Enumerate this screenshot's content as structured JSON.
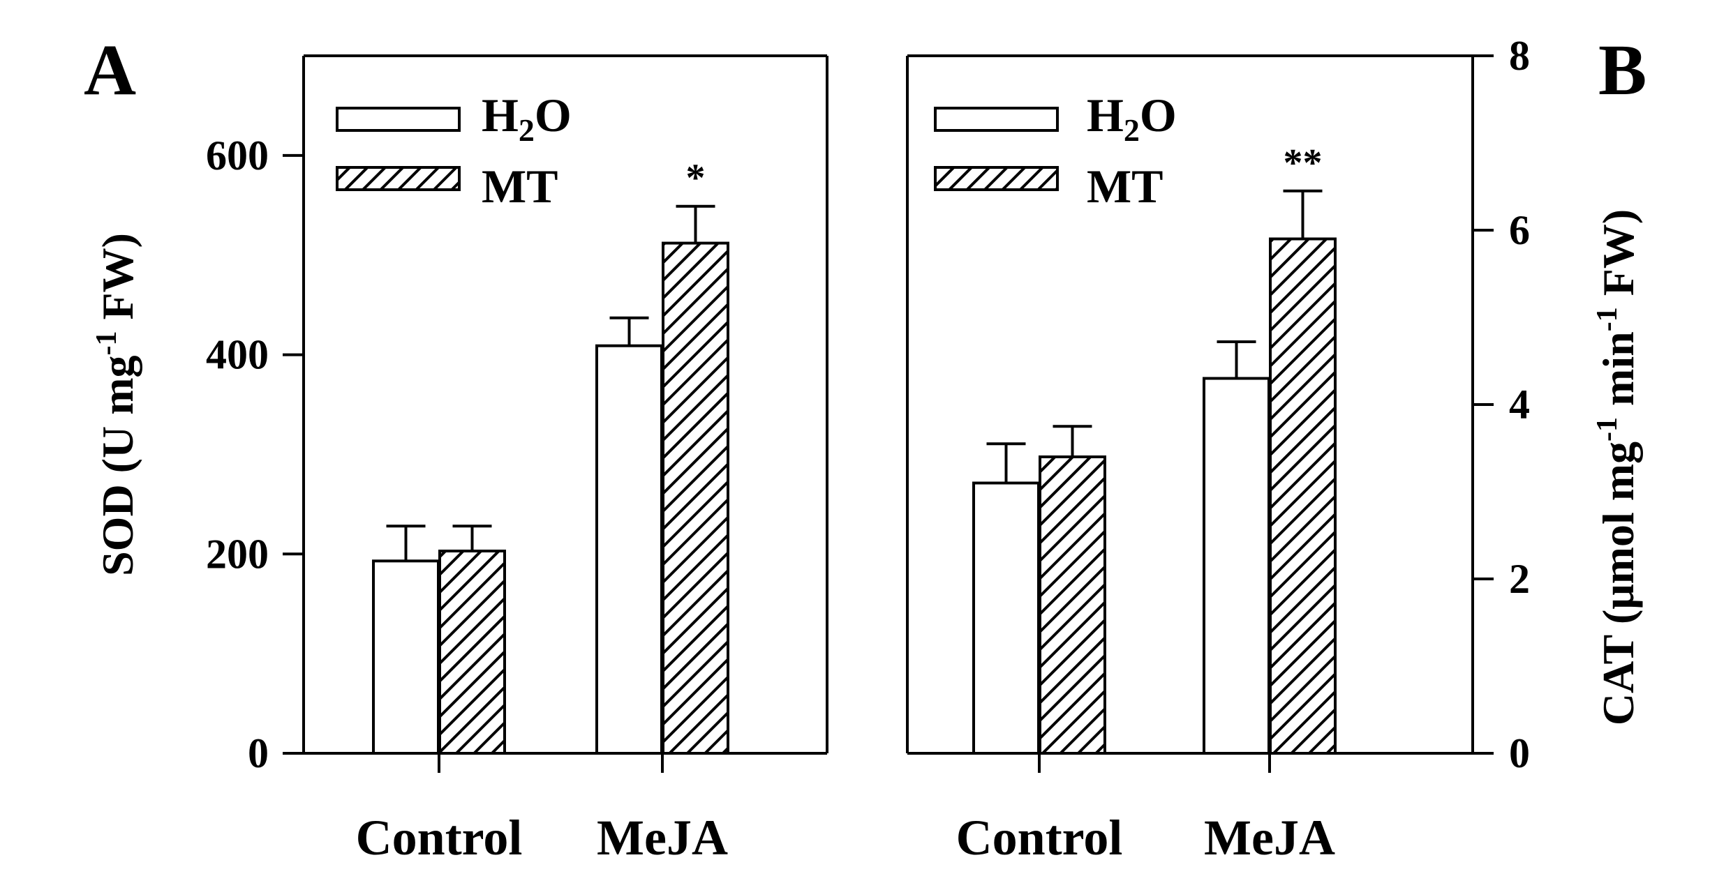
{
  "chart_data": [
    {
      "type": "bar",
      "panel": "A",
      "categories": [
        "Control",
        "MeJA"
      ],
      "series": [
        {
          "name": "H2O",
          "legend_label": "H",
          "legend_sub": "2",
          "legend_suffix": "O",
          "values": [
            193,
            409
          ],
          "errors": [
            35,
            28
          ]
        },
        {
          "name": "MT",
          "legend_label": "MT",
          "values": [
            203,
            512
          ],
          "errors": [
            25,
            37
          ]
        }
      ],
      "significance": [
        "",
        "*"
      ],
      "ylabel_parts": {
        "main": "SOD (U mg",
        "sup": "-1",
        "tail": " FW)"
      },
      "ylim": [
        0,
        700
      ],
      "yticks": [
        0,
        200,
        400,
        600
      ],
      "ytick_labels": [
        "0",
        "200",
        "400",
        "600"
      ],
      "y_axis_side": "left"
    },
    {
      "type": "bar",
      "panel": "B",
      "categories": [
        "Control",
        "MeJA"
      ],
      "series": [
        {
          "name": "H2O",
          "legend_label": "H",
          "legend_sub": "2",
          "legend_suffix": "O",
          "values": [
            3.1,
            4.3
          ],
          "errors": [
            0.45,
            0.42
          ]
        },
        {
          "name": "MT",
          "legend_label": "MT",
          "values": [
            3.4,
            5.9
          ],
          "errors": [
            0.35,
            0.55
          ]
        }
      ],
      "significance": [
        "",
        "**"
      ],
      "ylabel_parts": {
        "main": "CAT (μmol mg",
        "sup1": "-1",
        "mid": " min",
        "sup2": "-1",
        "tail": " FW)"
      },
      "ylim": [
        0,
        8
      ],
      "yticks": [
        0,
        2,
        4,
        6,
        8
      ],
      "ytick_labels": [
        "0",
        "2",
        "4",
        "6",
        "8"
      ],
      "y_axis_side": "right"
    }
  ]
}
